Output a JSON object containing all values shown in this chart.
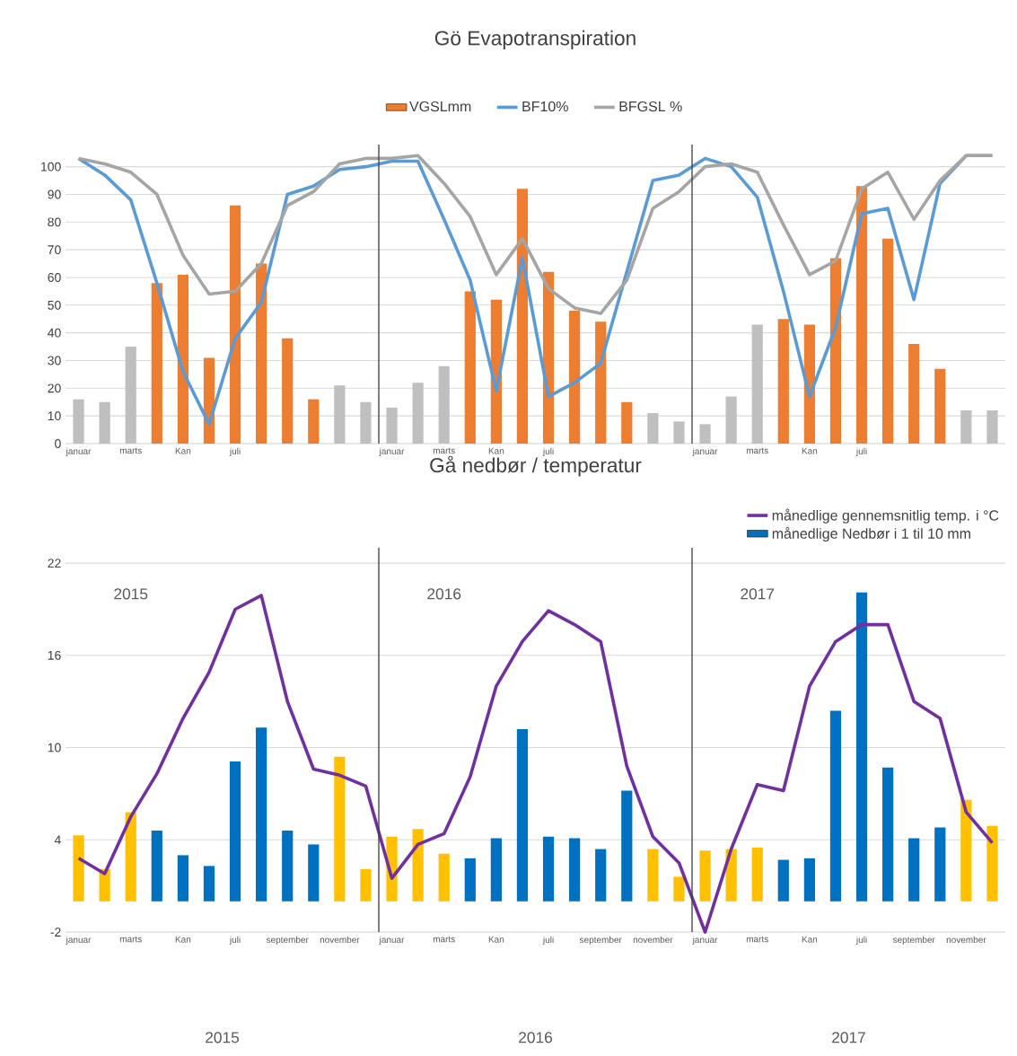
{
  "chart_data": [
    {
      "type": "bar",
      "title": "Gö Evapotranspiration",
      "categories": [
        "januar",
        null,
        "marts",
        null,
        "Kan",
        null,
        "juli",
        null,
        null,
        null,
        null,
        null,
        "januar",
        null,
        "marts",
        null,
        "Kan",
        null,
        "juli",
        null,
        null,
        null,
        null,
        null,
        "januar",
        null,
        "marts",
        null,
        "Kan",
        null,
        "juli",
        null,
        null,
        null,
        null,
        null
      ],
      "series": [
        {
          "name": "VGSLmm",
          "color": "#ed7d31",
          "colors": [
            "#bfbfbf",
            "#bfbfbf",
            "#bfbfbf",
            "#ed7d31",
            "#ed7d31",
            "#ed7d31",
            "#ed7d31",
            "#ed7d31",
            "#ed7d31",
            "#ed7d31",
            "#bfbfbf",
            "#bfbfbf",
            "#bfbfbf",
            "#bfbfbf",
            "#bfbfbf",
            "#ed7d31",
            "#ed7d31",
            "#ed7d31",
            "#ed7d31",
            "#ed7d31",
            "#ed7d31",
            "#ed7d31",
            "#bfbfbf",
            "#bfbfbf",
            "#bfbfbf",
            "#bfbfbf",
            "#bfbfbf",
            "#ed7d31",
            "#ed7d31",
            "#ed7d31",
            "#ed7d31",
            "#ed7d31",
            "#ed7d31",
            "#ed7d31",
            "#bfbfbf",
            "#bfbfbf"
          ],
          "values": [
            16,
            15,
            35,
            58,
            61,
            31,
            86,
            65,
            38,
            16,
            21,
            15,
            13,
            22,
            28,
            55,
            52,
            92,
            62,
            48,
            44,
            15,
            11,
            8,
            7,
            17,
            43,
            45,
            43,
            67,
            93,
            74,
            36,
            27,
            12,
            12
          ]
        },
        {
          "name": "BF10%",
          "type": "line",
          "color": "#5b9bd5",
          "values": [
            103,
            97,
            88,
            58,
            26,
            7,
            38,
            51,
            90,
            93,
            99,
            100,
            102,
            102,
            81,
            59,
            19,
            67,
            17,
            22,
            29,
            62,
            95,
            97,
            103,
            100,
            89,
            55,
            17,
            42,
            83,
            85,
            52,
            94,
            104,
            104
          ]
        },
        {
          "name": "BFGSL %",
          "type": "line",
          "color": "#a5a5a5",
          "values": [
            103,
            101,
            98,
            90,
            68,
            54,
            55,
            65,
            86,
            91,
            101,
            103,
            103,
            104,
            94,
            82,
            61,
            74,
            56,
            49,
            47,
            59,
            85,
            91,
            100,
            101,
            98,
            79,
            61,
            66,
            92,
            98,
            81,
            95,
            104,
            104
          ]
        }
      ],
      "ylim": [
        0,
        108
      ],
      "yticks": [
        0,
        10,
        20,
        30,
        40,
        50,
        60,
        70,
        80,
        90,
        100
      ],
      "grid": "y",
      "legend": "top",
      "marker": "none"
    },
    {
      "type": "bar",
      "title": "Gå nedbør / temperatur",
      "categories": [
        "januar",
        null,
        "marts",
        null,
        "Kan",
        null,
        "juli",
        null,
        "september",
        null,
        "november",
        null,
        "januar",
        null,
        "marts",
        null,
        "Kan",
        null,
        "juli",
        null,
        "september",
        null,
        "november",
        null,
        "januar",
        null,
        "marts",
        null,
        "Kan",
        null,
        "juli",
        null,
        "september",
        null,
        "november",
        null
      ],
      "series": [
        {
          "name": "månedlige gennemsnitlig temp. i °C",
          "type": "line",
          "color": "#7030a0",
          "values": [
            2.8,
            1.8,
            5.5,
            8.3,
            11.9,
            14.9,
            19.0,
            19.9,
            13.0,
            8.6,
            8.2,
            7.5,
            1.5,
            3.7,
            4.4,
            8.1,
            14.0,
            16.9,
            18.9,
            18.0,
            16.9,
            8.8,
            4.2,
            2.5,
            -2.0,
            3.4,
            7.6,
            7.2,
            14.0,
            16.9,
            18.0,
            18.0,
            13.0,
            11.9,
            5.8,
            3.8
          ]
        },
        {
          "name": "månedlige Nedbør i 1 til 10 mm",
          "color": "#0070c0",
          "colors": [
            "#ffc000",
            "#ffc000",
            "#ffc000",
            "#0070c0",
            "#0070c0",
            "#0070c0",
            "#0070c0",
            "#0070c0",
            "#0070c0",
            "#0070c0",
            "#ffc000",
            "#ffc000",
            "#ffc000",
            "#ffc000",
            "#ffc000",
            "#0070c0",
            "#0070c0",
            "#0070c0",
            "#0070c0",
            "#0070c0",
            "#0070c0",
            "#0070c0",
            "#ffc000",
            "#ffc000",
            "#ffc000",
            "#ffc000",
            "#ffc000",
            "#0070c0",
            "#0070c0",
            "#0070c0",
            "#0070c0",
            "#0070c0",
            "#0070c0",
            "#0070c0",
            "#ffc000",
            "#ffc000"
          ],
          "values": [
            4.3,
            2.1,
            5.8,
            4.6,
            3.0,
            2.3,
            9.1,
            11.3,
            4.6,
            3.7,
            9.4,
            2.1,
            4.2,
            4.7,
            3.1,
            2.8,
            4.1,
            11.2,
            4.2,
            4.1,
            3.4,
            7.2,
            3.4,
            1.6,
            3.3,
            3.4,
            3.5,
            2.7,
            2.8,
            12.4,
            20.1,
            8.7,
            4.1,
            4.8,
            6.6,
            4.9
          ]
        }
      ],
      "ylim": [
        -2,
        23
      ],
      "yticks": [
        -2,
        4,
        10,
        16,
        22
      ],
      "grid": "y",
      "legend": "top right",
      "marker": "none",
      "annotations": [
        "2015",
        "2016",
        "2017",
        "2015",
        "2016",
        "2017"
      ]
    }
  ]
}
